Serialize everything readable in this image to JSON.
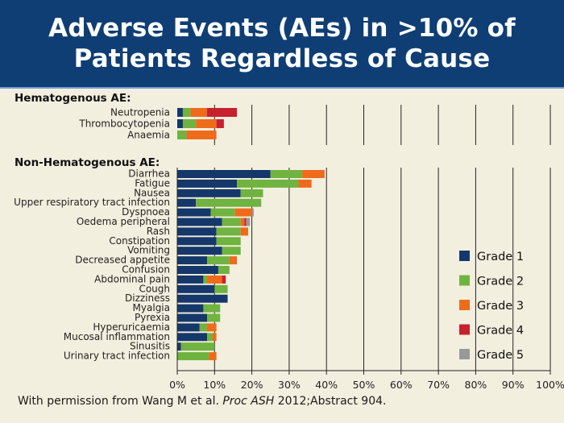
{
  "header": {
    "title_line1": "Adverse Events (AEs) in >10% of",
    "title_line2": "Patients Regardless of Cause"
  },
  "footer": {
    "prefix": "With permission from Wang M et al. ",
    "journal": "Proc ASH",
    "suffix": " 2012;Abstract 904."
  },
  "colors": {
    "Grade 1": "#15386a",
    "Grade 2": "#70b340",
    "Grade 3": "#ee6b1c",
    "Grade 4": "#c7212e",
    "Grade 5": "#999999",
    "grid": "#222222"
  },
  "chart_data": {
    "type": "bar",
    "orientation": "horizontal",
    "stacked": true,
    "xlim": [
      0,
      100
    ],
    "x_ticks": [
      "0%",
      "10%",
      "20%",
      "30%",
      "40%",
      "50%",
      "60%",
      "70%",
      "80%",
      "90%",
      "100%"
    ],
    "grid": true,
    "legend_position": "right",
    "series_names": [
      "Grade 1",
      "Grade 2",
      "Grade 3",
      "Grade 4",
      "Grade 5"
    ],
    "groups": [
      {
        "title": "Hematogenous AE:",
        "categories": [
          "Neutropenia",
          "Thrombocytopenia",
          "Anaemia"
        ],
        "values": [
          [
            1.5,
            2,
            4.5,
            8,
            0
          ],
          [
            1.5,
            3.5,
            5.5,
            2,
            0
          ],
          [
            0,
            2.5,
            8,
            0,
            0
          ]
        ]
      },
      {
        "title": "Non-Hematogenous AE:",
        "categories": [
          "Diarrhea",
          "Fatigue",
          "Nausea",
          "Upper respiratory tract infection",
          "Dyspnoea",
          "Oedema peripheral",
          "Rash",
          "Constipation",
          "Vomiting",
          "Decreased appetite",
          "Confusion",
          "Abdominal pain",
          "Cough",
          "Dizziness",
          "Myalgia",
          "Pyrexia",
          "Hyperuricaemia",
          "Mucosal inflammation",
          "Sinusitis",
          "Urinary tract infection"
        ],
        "values": [
          [
            25,
            8.5,
            6,
            0,
            0
          ],
          [
            16,
            16.5,
            3.5,
            0,
            0
          ],
          [
            17,
            6,
            0,
            0,
            0
          ],
          [
            5,
            17.5,
            0,
            0,
            0
          ],
          [
            9,
            6.5,
            4.5,
            0,
            0.5
          ],
          [
            12,
            5,
            1,
            0.5,
            1
          ],
          [
            10.5,
            6.5,
            2,
            0,
            0
          ],
          [
            10.5,
            6.5,
            0,
            0,
            0
          ],
          [
            12,
            5,
            0,
            0,
            0
          ],
          [
            8,
            6,
            2,
            0,
            0
          ],
          [
            11,
            3,
            0,
            0,
            0
          ],
          [
            7,
            1,
            4,
            1,
            0
          ],
          [
            10,
            3.5,
            0,
            0,
            0
          ],
          [
            13.5,
            0,
            0,
            0,
            0
          ],
          [
            7,
            4.5,
            0,
            0,
            0
          ],
          [
            8,
            3.5,
            0,
            0,
            0
          ],
          [
            6,
            2,
            2.5,
            0,
            0
          ],
          [
            8,
            1.5,
            1,
            0,
            0
          ],
          [
            1,
            9,
            0,
            0,
            0
          ],
          [
            0,
            8.5,
            2,
            0,
            0
          ]
        ]
      }
    ]
  }
}
